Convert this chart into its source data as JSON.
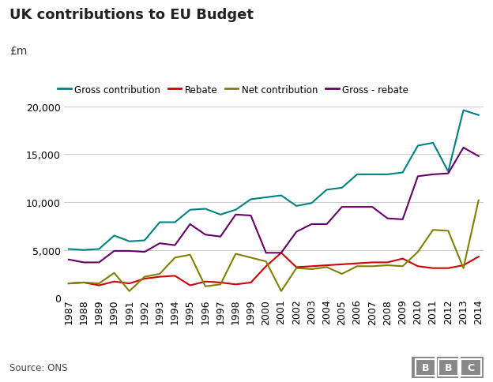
{
  "title": "UK contributions to EU Budget",
  "ylabel": "£m",
  "source": "Source: ONS",
  "years": [
    1987,
    1988,
    1989,
    1990,
    1991,
    1992,
    1993,
    1994,
    1995,
    1996,
    1997,
    1998,
    1999,
    2000,
    2001,
    2002,
    2003,
    2004,
    2005,
    2006,
    2007,
    2008,
    2009,
    2010,
    2011,
    2012,
    2013,
    2014
  ],
  "gross_contribution": [
    5100,
    5000,
    5100,
    6500,
    5900,
    6000,
    7900,
    7900,
    9200,
    9300,
    8700,
    9200,
    10300,
    10500,
    10700,
    9600,
    9900,
    11300,
    11500,
    12900,
    12900,
    12900,
    13100,
    15900,
    16200,
    13200,
    19600,
    19100
  ],
  "rebate": [
    1500,
    1600,
    1300,
    1700,
    1500,
    2000,
    2200,
    2300,
    1300,
    1700,
    1600,
    1400,
    1600,
    3300,
    4700,
    3200,
    3300,
    3400,
    3500,
    3600,
    3700,
    3700,
    4100,
    3300,
    3100,
    3100,
    3400,
    4300
  ],
  "net_contribution": [
    1500,
    1600,
    1500,
    2600,
    700,
    2200,
    2500,
    4200,
    4500,
    1200,
    1400,
    4600,
    4200,
    3800,
    700,
    3100,
    3000,
    3200,
    2500,
    3300,
    3300,
    3400,
    3300,
    4800,
    7100,
    7000,
    3100,
    10200
  ],
  "gross_rebate": [
    4000,
    3700,
    3700,
    4900,
    4900,
    4800,
    5700,
    5500,
    7700,
    6600,
    6400,
    8700,
    8600,
    4700,
    4700,
    6900,
    7700,
    7700,
    9500,
    9500,
    9500,
    8300,
    8200,
    12700,
    12900,
    13000,
    15700,
    14800
  ],
  "gross_color": "#008080",
  "rebate_color": "#cc0000",
  "net_color": "#808000",
  "gross_rebate_color": "#660066",
  "ylim": [
    0,
    20000
  ],
  "yticks": [
    0,
    5000,
    10000,
    15000,
    20000
  ],
  "background_color": "#ffffff",
  "grid_color": "#cccccc",
  "title_fontsize": 13,
  "label_fontsize": 9,
  "legend_fontsize": 8.5,
  "source_fontsize": 8.5
}
